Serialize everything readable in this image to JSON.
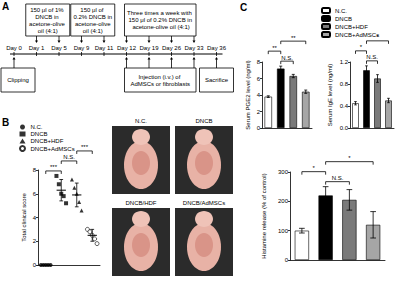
{
  "panel_labels": [
    "A",
    "B",
    "C"
  ],
  "timeline": {
    "days": [
      "Day 0",
      "Day 1",
      "Day 5",
      "Day 9",
      "Day 11",
      "Day 12",
      "Day 19",
      "Day 26",
      "Day 33",
      "Day 36"
    ],
    "above": [
      {
        "text": "150 μl of 1% DNCB in acetone-olive oil (4:1)",
        "from": "Day 1",
        "to": "Day 5"
      },
      {
        "text": "150 μl of 0.2% DNCB in acetone-olive oil (4:1)",
        "from": "Day 9",
        "to": "Day 11"
      },
      {
        "text": "Three times a week with 150 μl of 0.2% DNCB in acetone-olive oil (4:1)",
        "from": "Day 12",
        "to": "Day 33"
      }
    ],
    "below": [
      {
        "text": "Clipping",
        "from": "Day 0",
        "to": "Day 0"
      },
      {
        "text": "Injection (i.v.) of AdMSCs or fibroblasts",
        "from": "Day 12",
        "to": "Day 33"
      },
      {
        "text": "Sacrifice",
        "from": "Day 36",
        "to": "Day 36"
      }
    ]
  },
  "photos": [
    "N.C.",
    "DNCB",
    "DNCB/HDF",
    "DNCB/AdMSCs"
  ],
  "chart_data": [
    {
      "type": "scatter",
      "ylabel": "Total clinical score",
      "ylim": [
        0,
        8
      ],
      "yticks": [
        0,
        2,
        4,
        6,
        8
      ],
      "tick_labels": "y",
      "grid": false,
      "legend": "top-left",
      "series": [
        {
          "name": "N.C.",
          "color": "#000000",
          "marker": "circle",
          "values": [
            0,
            0,
            0,
            0,
            0
          ],
          "mean": 0,
          "error": 0
        },
        {
          "name": "DNCB",
          "color": "#000000",
          "marker": "square",
          "values": [
            7.5,
            6.8,
            6,
            5.8,
            5.2
          ],
          "mean": 6.3,
          "error": 0.9
        },
        {
          "name": "DNCB+HDF",
          "color": "#000000",
          "marker": "triangle",
          "values": [
            7.2,
            6.5,
            6,
            5.3,
            4.6
          ],
          "mean": 5.9,
          "error": 1
        },
        {
          "name": "DNCB+AdMSCs",
          "color": "#000000",
          "marker": "open circle",
          "values": [
            3,
            2.8,
            2.5,
            2.2,
            1.8
          ],
          "mean": 2.5,
          "error": 0.5
        }
      ],
      "annotations": [
        {
          "from": "N.C.",
          "to": "DNCB",
          "text": "***"
        },
        {
          "from": "DNCB",
          "to": "DNCB+HDF",
          "text": "N.S."
        },
        {
          "from": "DNCB+HDF",
          "to": "DNCB+AdMSCs",
          "text": "***"
        }
      ]
    },
    {
      "type": "bar",
      "ylabel": "Serum PGE2 level (ng/ml)",
      "categories": [
        "N.C.",
        "DNCB",
        "DNCB+HDF",
        "DNCB+AdMSCs"
      ],
      "values": [
        3.8,
        7.2,
        6.3,
        4.4
      ],
      "errors": [
        0.1,
        0.3,
        0.2,
        0.2
      ],
      "colors": [
        "#ffffff",
        "#000000",
        "#7a7a7a",
        "#a6a6a6"
      ],
      "ylim": [
        0,
        8
      ],
      "yticks": [
        0,
        2,
        4,
        6,
        8
      ],
      "tick_labels": "y",
      "grid": false,
      "legend": "top",
      "annotations": [
        {
          "from": "DNCB",
          "to": "DNCB+HDF",
          "text": "N.S."
        },
        {
          "from": "N.C.",
          "to": "DNCB",
          "text": "**"
        },
        {
          "from": "DNCB",
          "to": "DNCB+AdMSCs",
          "text": "**"
        }
      ]
    },
    {
      "type": "bar",
      "ylabel": "Serum IgE level (ng/ml)",
      "categories": [
        "N.C.",
        "DNCB",
        "DNCB+HDF",
        "DNCB+AdMSCs"
      ],
      "values": [
        0.45,
        1.05,
        0.9,
        0.5
      ],
      "errors": [
        0.03,
        0.08,
        0.07,
        0.04
      ],
      "colors": [
        "#ffffff",
        "#000000",
        "#7a7a7a",
        "#a6a6a6"
      ],
      "ylim": [
        0,
        1.2
      ],
      "yticks": [
        {
          "value": 0,
          "label": "0.0"
        },
        0.4,
        0.8,
        1.2
      ],
      "tick_labels": "y",
      "grid": false,
      "annotations": [
        {
          "from": "DNCB",
          "to": "DNCB+HDF",
          "text": "N.S."
        },
        {
          "from": "N.C.",
          "to": "DNCB",
          "text": "*"
        },
        {
          "from": "DNCB",
          "to": "DNCB+AdMSCs",
          "text": "*"
        }
      ]
    },
    {
      "type": "bar",
      "ylabel": "Histamine release (% of control)",
      "categories": [
        "N.C.",
        "DNCB",
        "DNCB+HDF",
        "DNCB+AdMSCs"
      ],
      "values": [
        100,
        220,
        205,
        120
      ],
      "errors": [
        8,
        30,
        35,
        45
      ],
      "colors": [
        "#ffffff",
        "#000000",
        "#7a7a7a",
        "#a6a6a6"
      ],
      "ylim": [
        0,
        300
      ],
      "yticks": [
        0,
        100,
        200,
        300
      ],
      "tick_labels": "y",
      "grid": false,
      "annotations": [
        {
          "from": "DNCB",
          "to": "DNCB+HDF",
          "text": "N.S."
        },
        {
          "from": "N.C.",
          "to": "DNCB",
          "text": "*"
        },
        {
          "from": "DNCB",
          "to": "DNCB+AdMSCs",
          "text": "*"
        }
      ]
    }
  ]
}
